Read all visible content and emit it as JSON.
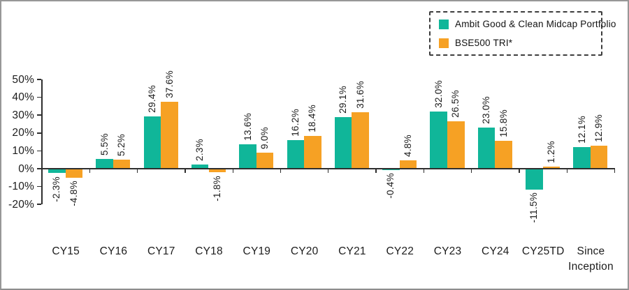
{
  "legend": {
    "items": [
      {
        "label": "Ambit Good & Clean Midcap Portfolio",
        "color": "#10B699"
      },
      {
        "label": "BSE500 TRI*",
        "color": "#F6A124"
      }
    ]
  },
  "chart_data": {
    "type": "bar",
    "categories": [
      "CY15",
      "CY16",
      "CY17",
      "CY18",
      "CY19",
      "CY20",
      "CY21",
      "CY22",
      "CY23",
      "CY24",
      "CY25TD",
      "Since Inception"
    ],
    "series": [
      {
        "name": "Ambit Good & Clean Midcap Portfolio",
        "color": "#10B699",
        "values": [
          -2.3,
          5.5,
          29.4,
          2.3,
          13.6,
          16.2,
          29.1,
          -0.4,
          32.0,
          23.0,
          -11.5,
          12.1
        ],
        "labels": [
          "-2.3%",
          "5.5%",
          "29.4%",
          "2.3%",
          "13.6%",
          "16.2%",
          "29.1%",
          "-0.4%",
          "32.0%",
          "23.0%",
          "-11.5%",
          "12.1%"
        ]
      },
      {
        "name": "BSE500 TRI*",
        "color": "#F6A124",
        "values": [
          -4.8,
          5.2,
          37.6,
          -1.8,
          9.0,
          18.4,
          31.6,
          4.8,
          26.5,
          15.8,
          1.2,
          12.9
        ],
        "labels": [
          "-4.8%",
          "5.2%",
          "37.6%",
          "-1.8%",
          "9.0%",
          "18.4%",
          "31.6%",
          "4.8%",
          "26.5%",
          "15.8%",
          "1.2%",
          "12.9%"
        ]
      }
    ],
    "y_ticks": [
      "50%",
      "40%",
      "30%",
      "20%",
      "10%",
      "0%",
      "-10%",
      "-20%"
    ],
    "y_tick_values": [
      50,
      40,
      30,
      20,
      10,
      0,
      -10,
      -20
    ],
    "ylim": [
      -20,
      50
    ],
    "grid": false,
    "legend_position": "top-right"
  }
}
